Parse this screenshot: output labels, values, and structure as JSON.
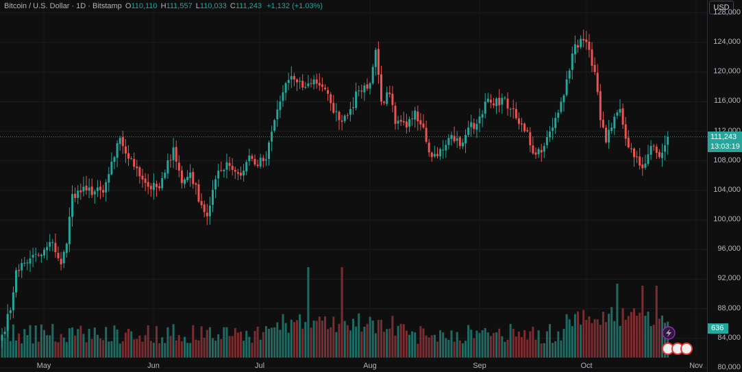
{
  "legend": {
    "symbol": "Bitcoin / U.S. Dollar · 1D · Bitstamp",
    "o_label": "O",
    "o_value": "110,110",
    "h_label": "H",
    "h_value": "111,557",
    "l_label": "L",
    "l_value": "110,033",
    "c_label": "C",
    "c_value": "111,243",
    "change": "+1,132 (+1.03%)"
  },
  "currency_button": "USD",
  "last_price": {
    "price": "111,243",
    "countdown": "13:03:19"
  },
  "volume_tag": "636",
  "colors": {
    "up": "#26a69a",
    "down": "#ef5350",
    "up_volume": "#1f6b63",
    "down_volume": "#7a2d30",
    "background": "#0f0f0f"
  },
  "chart_data": {
    "type": "candlestick",
    "x_tick_labels": [
      "May",
      "Jun",
      "Jul",
      "Aug",
      "Sep",
      "Oct",
      "Nov"
    ],
    "y_tick_labels": [
      "80,000",
      "84,000",
      "88,000",
      "92,000",
      "96,000",
      "100,000",
      "104,000",
      "108,000",
      "112,000",
      "116,000",
      "120,000",
      "124,000",
      "128,000"
    ],
    "ylim": [
      80000,
      129000
    ],
    "last_close": 111243,
    "keypoints": [
      [
        0,
        84500
      ],
      [
        3,
        87800
      ],
      [
        5,
        93200
      ],
      [
        10,
        94800
      ],
      [
        14,
        95300
      ],
      [
        18,
        97000
      ],
      [
        21,
        94000
      ],
      [
        23,
        96800
      ],
      [
        25,
        103500
      ],
      [
        30,
        104000
      ],
      [
        36,
        103700
      ],
      [
        40,
        108500
      ],
      [
        42,
        111100
      ],
      [
        45,
        108300
      ],
      [
        48,
        107000
      ],
      [
        52,
        104500
      ],
      [
        56,
        104300
      ],
      [
        58,
        106400
      ],
      [
        61,
        109800
      ],
      [
        64,
        105000
      ],
      [
        67,
        106400
      ],
      [
        71,
        102000
      ],
      [
        73,
        100500
      ],
      [
        76,
        105500
      ],
      [
        80,
        107800
      ],
      [
        85,
        106000
      ],
      [
        88,
        108700
      ],
      [
        90,
        107500
      ],
      [
        94,
        108200
      ],
      [
        97,
        113500
      ],
      [
        101,
        118500
      ],
      [
        104,
        119000
      ],
      [
        108,
        118000
      ],
      [
        111,
        119000
      ],
      [
        114,
        118000
      ],
      [
        117,
        115800
      ],
      [
        120,
        113500
      ],
      [
        124,
        115000
      ],
      [
        127,
        117500
      ],
      [
        131,
        118500
      ],
      [
        133,
        123000
      ],
      [
        135,
        116000
      ],
      [
        138,
        117000
      ],
      [
        140,
        113000
      ],
      [
        144,
        112500
      ],
      [
        147,
        114800
      ],
      [
        150,
        112500
      ],
      [
        153,
        108500
      ],
      [
        157,
        109500
      ],
      [
        160,
        111500
      ],
      [
        163,
        110000
      ],
      [
        166,
        112500
      ],
      [
        169,
        113000
      ],
      [
        172,
        116000
      ],
      [
        175,
        115500
      ],
      [
        178,
        116500
      ],
      [
        181,
        115000
      ],
      [
        184,
        113000
      ],
      [
        187,
        112000
      ],
      [
        189,
        109000
      ],
      [
        193,
        110000
      ],
      [
        196,
        112500
      ],
      [
        198,
        114500
      ],
      [
        201,
        119000
      ],
      [
        203,
        122500
      ],
      [
        206,
        124500
      ],
      [
        209,
        123000
      ],
      [
        211,
        120000
      ],
      [
        213,
        113500
      ],
      [
        215,
        110500
      ],
      [
        217,
        112500
      ],
      [
        220,
        115000
      ],
      [
        222,
        111000
      ],
      [
        225,
        108500
      ],
      [
        228,
        107000
      ],
      [
        231,
        110000
      ],
      [
        234,
        108500
      ],
      [
        236,
        110100
      ],
      [
        237,
        111243
      ]
    ]
  }
}
